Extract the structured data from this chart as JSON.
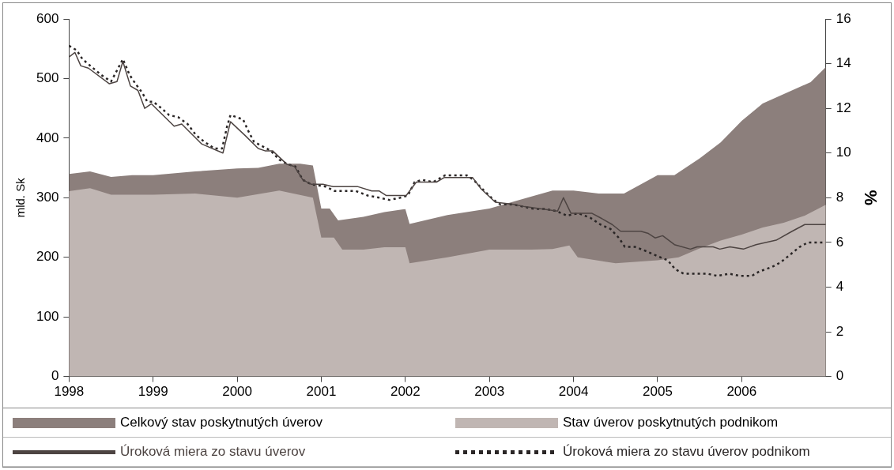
{
  "chart_data": {
    "type": "area",
    "ylabel": "mld. Sk",
    "y2label": "%",
    "legend": "bottom",
    "xlim": [
      1998,
      2007
    ],
    "xticks": [
      1998,
      1999,
      2000,
      2001,
      2002,
      2003,
      2004,
      2005,
      2006
    ],
    "ylim": [
      0,
      600
    ],
    "yticks": [
      0,
      100,
      200,
      300,
      400,
      500,
      600
    ],
    "y2lim": [
      0,
      16
    ],
    "y2ticks": [
      0,
      2,
      4,
      6,
      8,
      10,
      12,
      14,
      16
    ],
    "series": [
      {
        "name": "Celkový stav poskytnutých úverov",
        "type": "area",
        "color": "#8c7f7c",
        "x": [
          1998,
          1998.25,
          1998.5,
          1998.75,
          1999,
          1999.5,
          2000,
          2000.25,
          2000.5,
          2000.75,
          2000.9,
          2001,
          2001.1,
          2001.2,
          2001.5,
          2001.75,
          2002,
          2002.05,
          2002.5,
          2003,
          2003.5,
          2003.75,
          2004,
          2004.3,
          2004.6,
          2005,
          2005.2,
          2005.5,
          2005.75,
          2006,
          2006.25,
          2006.82,
          2007
        ],
        "values": [
          340,
          344,
          335,
          338,
          338,
          344,
          349,
          350,
          357,
          357,
          354,
          282,
          282,
          262,
          268,
          276,
          281,
          256,
          271,
          282,
          302,
          312,
          312,
          307,
          307,
          338,
          338,
          366,
          393,
          429,
          458,
          494,
          519
        ]
      },
      {
        "name": "Stav úverov poskytnutých podnikom",
        "type": "area",
        "color": "#c0b6b3",
        "x": [
          1998,
          1998.25,
          1998.5,
          1999,
          1999.5,
          2000,
          2000.5,
          2000.9,
          2001,
          2001.15,
          2001.25,
          2001.5,
          2001.75,
          2002,
          2002.05,
          2002.5,
          2003,
          2003.5,
          2003.75,
          2003.95,
          2004.05,
          2004.5,
          2005,
          2005.25,
          2005.5,
          2005.75,
          2006,
          2006.25,
          2006.5,
          2006.75,
          2007
        ],
        "values": [
          311,
          316,
          305,
          305,
          307,
          300,
          312,
          300,
          233,
          233,
          213,
          213,
          217,
          217,
          190,
          200,
          213,
          213,
          214,
          220,
          200,
          190,
          195,
          200,
          215,
          228,
          238,
          250,
          258,
          270,
          288
        ]
      },
      {
        "name": "Úroková miera zo stavu úverov",
        "type": "line",
        "axis": "y2",
        "line_style": "solid",
        "color": "#4d4442",
        "x": [
          1998,
          1998.07,
          1998.14,
          1998.23,
          1998.48,
          1998.57,
          1998.64,
          1998.73,
          1998.82,
          1998.9,
          1998.98,
          1999.25,
          1999.34,
          1999.58,
          1999.83,
          1999.92,
          2000.09,
          2000.25,
          2000.33,
          2000.42,
          2000.59,
          2000.68,
          2000.78,
          2000.88,
          2001.02,
          2001.14,
          2001.27,
          2001.43,
          2001.6,
          2001.69,
          2001.77,
          2002.01,
          2002.13,
          2002.3,
          2002.37,
          2002.46,
          2002.8,
          2002.9,
          2003.07,
          2003.29,
          2003.42,
          2003.81,
          2003.88,
          2003.97,
          2004.22,
          2004.32,
          2004.46,
          2004.56,
          2004.8,
          2004.89,
          2004.97,
          2005.06,
          2005.2,
          2005.39,
          2005.47,
          2005.66,
          2005.74,
          2005.86,
          2006.02,
          2006.17,
          2006.41,
          2006.6,
          2006.75,
          2006.84,
          2007
        ],
        "values": [
          14.3,
          14.5,
          13.9,
          13.8,
          13.1,
          13.2,
          14.1,
          13.0,
          12.8,
          12.0,
          12.2,
          11.2,
          11.3,
          10.4,
          10.0,
          11.4,
          10.8,
          10.2,
          10.1,
          10.1,
          9.5,
          9.4,
          8.8,
          8.6,
          8.6,
          8.5,
          8.5,
          8.5,
          8.3,
          8.3,
          8.1,
          8.1,
          8.7,
          8.7,
          8.7,
          8.9,
          8.9,
          8.4,
          7.8,
          7.7,
          7.6,
          7.4,
          8.0,
          7.3,
          7.3,
          7.1,
          6.8,
          6.5,
          6.5,
          6.4,
          6.2,
          6.3,
          5.9,
          5.7,
          5.8,
          5.8,
          5.7,
          5.8,
          5.7,
          5.9,
          6.1,
          6.5,
          6.8,
          6.8,
          6.8
        ]
      },
      {
        "name": "Úroková miera zo stavu úverov podnikom",
        "type": "line",
        "axis": "y2",
        "line_style": "dotted",
        "color": "#2a2626",
        "x": [
          1998,
          1998.09,
          1998.16,
          1998.38,
          1998.5,
          1998.57,
          1998.64,
          1998.72,
          1998.79,
          1998.87,
          1998.93,
          1999,
          1999.1,
          1999.19,
          1999.3,
          1999.41,
          1999.51,
          1999.61,
          1999.73,
          1999.82,
          1999.88,
          1999.92,
          2000.07,
          2000.13,
          2000.2,
          2000.4,
          2000.5,
          2000.6,
          2000.69,
          2000.78,
          2000.88,
          2001.05,
          2001.16,
          2001.29,
          2001.41,
          2001.55,
          2001.69,
          2001.81,
          2001.94,
          2002.03,
          2002.11,
          2002.2,
          2002.33,
          2002.47,
          2002.61,
          2002.73,
          2002.81,
          2002.94,
          2003.05,
          2003.13,
          2003.28,
          2003.4,
          2003.53,
          2003.66,
          2003.8,
          2003.92,
          2004.06,
          2004.2,
          2004.32,
          2004.44,
          2004.54,
          2004.61,
          2004.73,
          2004.87,
          2004.99,
          2005.12,
          2005.21,
          2005.31,
          2005.44,
          2005.59,
          2005.71,
          2005.85,
          2005.98,
          2006.12,
          2006.21,
          2006.36,
          2006.46,
          2006.56,
          2006.69,
          2006.79,
          2007
        ],
        "values": [
          14.8,
          14.6,
          14.2,
          13.5,
          13.2,
          13.7,
          14.2,
          13.5,
          13.1,
          12.7,
          12.3,
          12.3,
          12.0,
          11.7,
          11.6,
          11.3,
          10.8,
          10.5,
          10.2,
          10.2,
          11.2,
          11.7,
          11.5,
          11.0,
          10.5,
          10.1,
          9.7,
          9.5,
          9.4,
          8.8,
          8.6,
          8.5,
          8.3,
          8.3,
          8.3,
          8.1,
          8.0,
          7.9,
          8.0,
          8.1,
          8.7,
          8.8,
          8.7,
          9.0,
          9.0,
          9.0,
          8.8,
          8.3,
          7.9,
          7.7,
          7.7,
          7.6,
          7.5,
          7.5,
          7.4,
          7.2,
          7.3,
          7.1,
          6.8,
          6.6,
          6.2,
          5.8,
          5.8,
          5.6,
          5.4,
          5.2,
          4.8,
          4.6,
          4.6,
          4.6,
          4.5,
          4.6,
          4.5,
          4.5,
          4.7,
          4.9,
          5.1,
          5.4,
          5.8,
          6.0,
          6.0
        ]
      }
    ]
  }
}
